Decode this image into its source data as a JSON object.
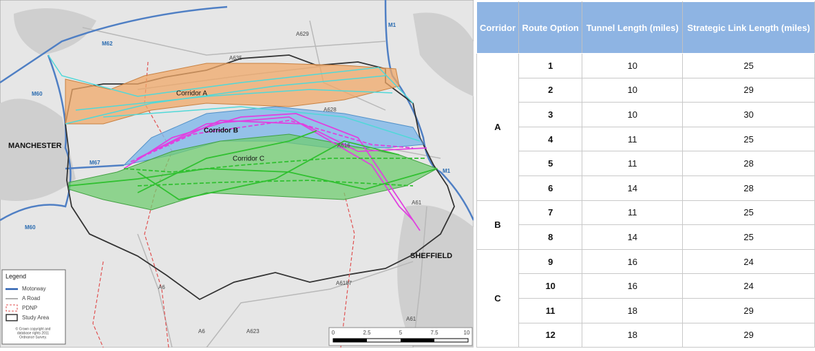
{
  "map": {
    "labels": [
      "M62",
      "M1",
      "A629",
      "A635",
      "M60",
      "Corridor A",
      "A628",
      "Corridor B",
      "MANCHESTER",
      "A616",
      "M67",
      "Corridor C",
      "M1",
      "A61",
      "M60",
      "SHEFFIELD",
      "A6",
      "A6187",
      "A6",
      "A623",
      "A61"
    ],
    "legend": {
      "title": "Legend",
      "items": [
        "Motorway",
        "A Road",
        "PDNP",
        "Study Area"
      ],
      "copyright": [
        "© Crown copyright and",
        "database rights 2011",
        "Ordnance Survey."
      ]
    },
    "scale": [
      "0",
      "2.5",
      "5",
      "7.5",
      "10"
    ]
  },
  "table": {
    "header": [
      "Corridor",
      "Route Option",
      "Tunnel Length (miles)",
      "Strategic Link Length (miles)"
    ],
    "groups": [
      {
        "corridor": "A",
        "rows": [
          [
            1,
            10,
            25
          ],
          [
            2,
            10,
            29
          ],
          [
            3,
            10,
            30
          ],
          [
            4,
            11,
            25
          ],
          [
            5,
            11,
            28
          ],
          [
            6,
            14,
            28
          ]
        ]
      },
      {
        "corridor": "B",
        "rows": [
          [
            7,
            11,
            25
          ],
          [
            8,
            14,
            25
          ]
        ]
      },
      {
        "corridor": "C",
        "rows": [
          [
            9,
            16,
            24
          ],
          [
            10,
            16,
            24
          ],
          [
            11,
            18,
            29
          ],
          [
            12,
            18,
            29
          ]
        ]
      }
    ]
  }
}
